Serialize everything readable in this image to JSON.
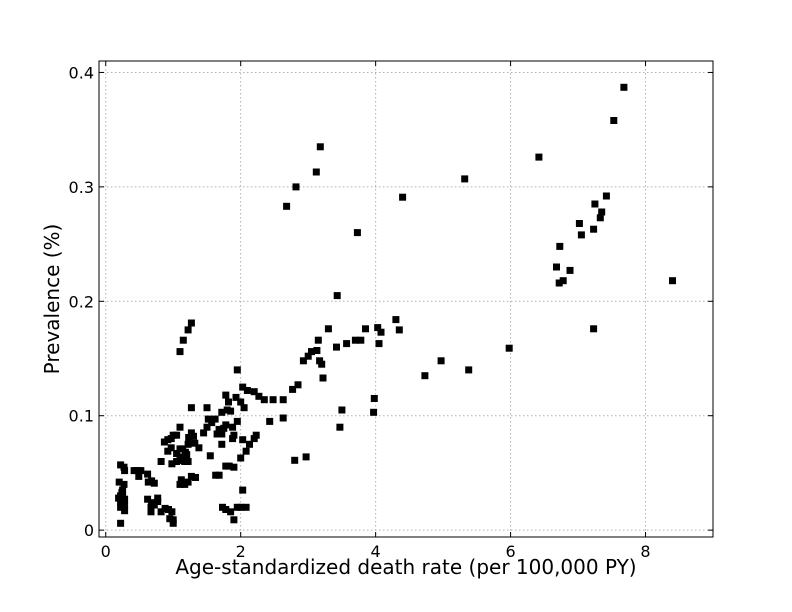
{
  "chart_data": {
    "type": "scatter",
    "title": "",
    "xlabel": "Age-standardized death rate (per 100,000 PY)",
    "ylabel": "Prevalence (%)",
    "xlim": [
      -0.1,
      9
    ],
    "ylim": [
      -0.006,
      0.41
    ],
    "xticks": [
      0,
      2,
      4,
      6,
      8
    ],
    "xtick_labels": [
      "0",
      "2",
      "4",
      "6",
      "8"
    ],
    "yticks": [
      0,
      0.1,
      0.2,
      0.3,
      0.4
    ],
    "ytick_labels": [
      "0",
      "0.1",
      "0.2",
      "0.3",
      "0.4"
    ],
    "grid": true,
    "marker": "square",
    "marker_color": "#000000",
    "points": [
      [
        0.22,
        0.057
      ],
      [
        0.27,
        0.055
      ],
      [
        0.28,
        0.052
      ],
      [
        0.2,
        0.042
      ],
      [
        0.27,
        0.04
      ],
      [
        0.25,
        0.035
      ],
      [
        0.24,
        0.033
      ],
      [
        0.22,
        0.03
      ],
      [
        0.25,
        0.03
      ],
      [
        0.19,
        0.028
      ],
      [
        0.28,
        0.027
      ],
      [
        0.22,
        0.025
      ],
      [
        0.28,
        0.022
      ],
      [
        0.22,
        0.02
      ],
      [
        0.28,
        0.017
      ],
      [
        0.22,
        0.006
      ],
      [
        0.42,
        0.052
      ],
      [
        0.47,
        0.052
      ],
      [
        0.52,
        0.052
      ],
      [
        0.49,
        0.047
      ],
      [
        0.62,
        0.049
      ],
      [
        0.63,
        0.042
      ],
      [
        0.68,
        0.043
      ],
      [
        0.72,
        0.041
      ],
      [
        0.62,
        0.027
      ],
      [
        0.68,
        0.024
      ],
      [
        0.72,
        0.022
      ],
      [
        0.77,
        0.025
      ],
      [
        0.77,
        0.028
      ],
      [
        0.67,
        0.02
      ],
      [
        0.67,
        0.016
      ],
      [
        0.82,
        0.016
      ],
      [
        0.88,
        0.019
      ],
      [
        0.93,
        0.018
      ],
      [
        0.98,
        0.016
      ],
      [
        0.95,
        0.01
      ],
      [
        1.0,
        0.006
      ],
      [
        1.0,
        0.009
      ],
      [
        0.82,
        0.06
      ],
      [
        0.92,
        0.069
      ],
      [
        0.98,
        0.058
      ],
      [
        1.05,
        0.06
      ],
      [
        1.1,
        0.061
      ],
      [
        1.15,
        0.061
      ],
      [
        1.17,
        0.06
      ],
      [
        1.22,
        0.06
      ],
      [
        1.12,
        0.064
      ],
      [
        1.18,
        0.068
      ],
      [
        1.2,
        0.066
      ],
      [
        1.05,
        0.067
      ],
      [
        1.1,
        0.071
      ],
      [
        1.14,
        0.071
      ],
      [
        0.97,
        0.072
      ],
      [
        0.87,
        0.077
      ],
      [
        0.92,
        0.079
      ],
      [
        0.97,
        0.08
      ],
      [
        1.0,
        0.083
      ],
      [
        1.05,
        0.083
      ],
      [
        1.1,
        0.09
      ],
      [
        1.23,
        0.081
      ],
      [
        1.27,
        0.085
      ],
      [
        1.3,
        0.082
      ],
      [
        1.32,
        0.076
      ],
      [
        1.38,
        0.072
      ],
      [
        1.22,
        0.075
      ],
      [
        1.12,
        0.044
      ],
      [
        1.17,
        0.04
      ],
      [
        1.22,
        0.042
      ],
      [
        1.27,
        0.047
      ],
      [
        1.33,
        0.046
      ],
      [
        1.1,
        0.04
      ],
      [
        1.27,
        0.107
      ],
      [
        1.1,
        0.156
      ],
      [
        1.15,
        0.166
      ],
      [
        1.22,
        0.175
      ],
      [
        1.27,
        0.181
      ],
      [
        1.45,
        0.085
      ],
      [
        1.5,
        0.09
      ],
      [
        1.5,
        0.107
      ],
      [
        1.52,
        0.097
      ],
      [
        1.57,
        0.094
      ],
      [
        1.62,
        0.097
      ],
      [
        1.65,
        0.084
      ],
      [
        1.68,
        0.088
      ],
      [
        1.72,
        0.084
      ],
      [
        1.72,
        0.103
      ],
      [
        1.75,
        0.089
      ],
      [
        1.78,
        0.092
      ],
      [
        1.8,
        0.105
      ],
      [
        1.82,
        0.112
      ],
      [
        1.85,
        0.104
      ],
      [
        1.88,
        0.09
      ],
      [
        1.88,
        0.08
      ],
      [
        1.9,
        0.083
      ],
      [
        1.95,
        0.095
      ],
      [
        1.93,
        0.116
      ],
      [
        2.0,
        0.112
      ],
      [
        2.05,
        0.107
      ],
      [
        2.03,
        0.125
      ],
      [
        1.95,
        0.14
      ],
      [
        1.78,
        0.118
      ],
      [
        1.55,
        0.065
      ],
      [
        1.63,
        0.048
      ],
      [
        1.68,
        0.048
      ],
      [
        1.72,
        0.075
      ],
      [
        1.78,
        0.056
      ],
      [
        1.83,
        0.056
      ],
      [
        1.9,
        0.055
      ],
      [
        2.0,
        0.063
      ],
      [
        2.03,
        0.079
      ],
      [
        2.08,
        0.069
      ],
      [
        2.13,
        0.075
      ],
      [
        2.2,
        0.08
      ],
      [
        2.23,
        0.083
      ],
      [
        2.1,
        0.122
      ],
      [
        2.2,
        0.121
      ],
      [
        2.27,
        0.117
      ],
      [
        2.35,
        0.114
      ],
      [
        2.43,
        0.095
      ],
      [
        2.48,
        0.114
      ],
      [
        1.73,
        0.02
      ],
      [
        1.78,
        0.018
      ],
      [
        1.85,
        0.016
      ],
      [
        1.9,
        0.009
      ],
      [
        1.95,
        0.02
      ],
      [
        2.0,
        0.02
      ],
      [
        2.08,
        0.02
      ],
      [
        2.03,
        0.035
      ],
      [
        2.63,
        0.114
      ],
      [
        2.63,
        0.098
      ],
      [
        2.77,
        0.123
      ],
      [
        2.85,
        0.127
      ],
      [
        2.8,
        0.061
      ],
      [
        2.97,
        0.064
      ],
      [
        2.93,
        0.148
      ],
      [
        3.0,
        0.152
      ],
      [
        3.05,
        0.156
      ],
      [
        3.13,
        0.157
      ],
      [
        3.17,
        0.148
      ],
      [
        3.2,
        0.145
      ],
      [
        3.22,
        0.133
      ],
      [
        3.15,
        0.166
      ],
      [
        3.3,
        0.176
      ],
      [
        3.42,
        0.16
      ],
      [
        3.43,
        0.205
      ],
      [
        3.5,
        0.105
      ],
      [
        3.47,
        0.09
      ],
      [
        3.57,
        0.163
      ],
      [
        3.7,
        0.166
      ],
      [
        3.78,
        0.166
      ],
      [
        3.85,
        0.176
      ],
      [
        3.98,
        0.115
      ],
      [
        3.97,
        0.103
      ],
      [
        4.03,
        0.177
      ],
      [
        4.05,
        0.163
      ],
      [
        4.08,
        0.173
      ],
      [
        4.3,
        0.184
      ],
      [
        4.35,
        0.175
      ],
      [
        2.68,
        0.283
      ],
      [
        2.82,
        0.3
      ],
      [
        3.12,
        0.313
      ],
      [
        3.18,
        0.335
      ],
      [
        3.73,
        0.26
      ],
      [
        4.4,
        0.291
      ],
      [
        4.73,
        0.135
      ],
      [
        4.97,
        0.148
      ],
      [
        5.32,
        0.307
      ],
      [
        5.38,
        0.14
      ],
      [
        5.98,
        0.159
      ],
      [
        6.42,
        0.326
      ],
      [
        6.68,
        0.23
      ],
      [
        6.73,
        0.248
      ],
      [
        6.72,
        0.216
      ],
      [
        6.78,
        0.218
      ],
      [
        6.88,
        0.227
      ],
      [
        7.02,
        0.268
      ],
      [
        7.05,
        0.258
      ],
      [
        7.23,
        0.263
      ],
      [
        7.23,
        0.176
      ],
      [
        7.25,
        0.285
      ],
      [
        7.33,
        0.273
      ],
      [
        7.35,
        0.278
      ],
      [
        7.42,
        0.292
      ],
      [
        7.53,
        0.358
      ],
      [
        7.68,
        0.387
      ],
      [
        8.4,
        0.218
      ]
    ]
  }
}
